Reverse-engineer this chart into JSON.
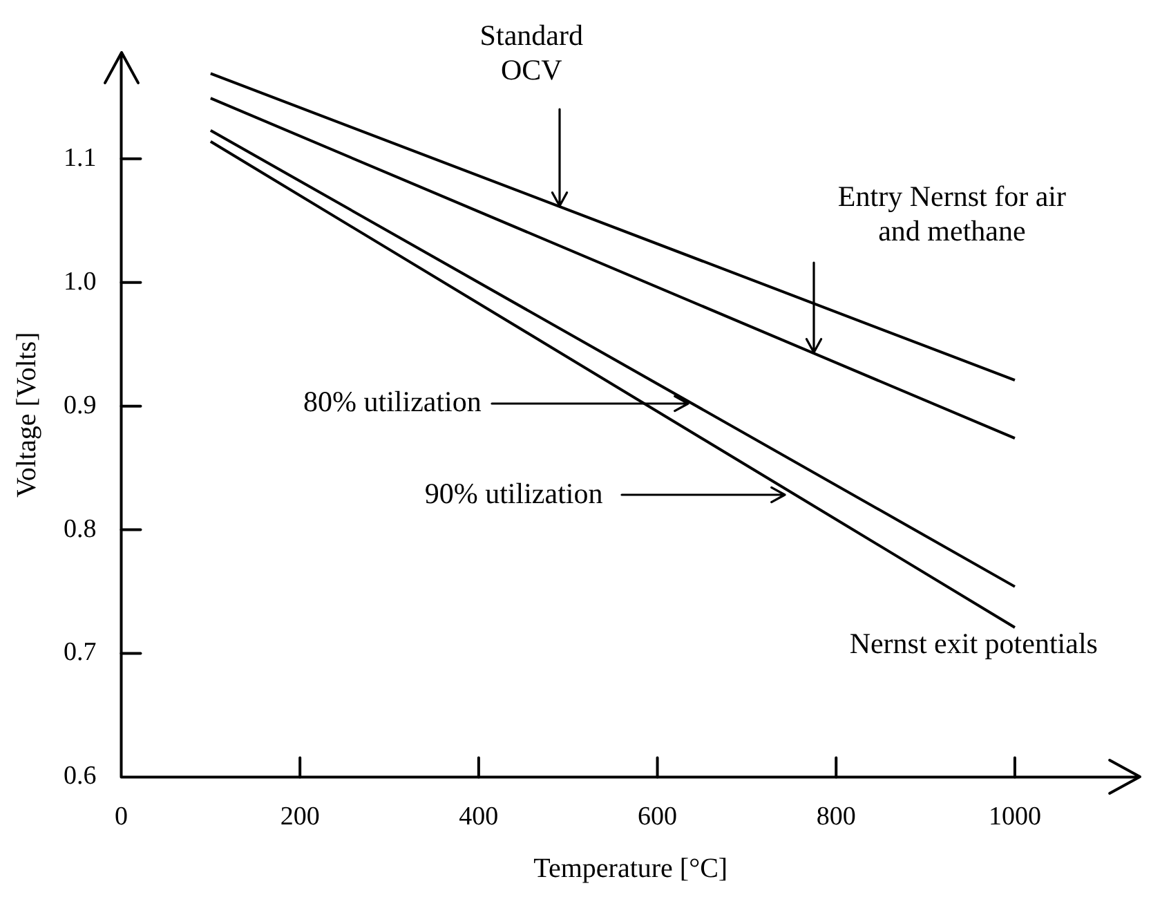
{
  "chart_data": {
    "type": "line",
    "xlabel": "Temperature [°C]",
    "ylabel": "Voltage [Volts]",
    "x": [
      100,
      1000
    ],
    "series": [
      {
        "color": "#000000",
        "values": [
          1.169,
          0.921
        ]
      },
      {
        "color": "#000000",
        "values": [
          1.149,
          0.874
        ]
      },
      {
        "color": "#000000",
        "values": [
          1.123,
          0.754
        ]
      },
      {
        "color": "#000000",
        "values": [
          1.114,
          0.721
        ]
      }
    ],
    "xlim": [
      0,
      1140
    ],
    "xticks": [
      0,
      200,
      400,
      600,
      800,
      1000
    ],
    "ylim": [
      0.6,
      1.186
    ],
    "yticks": [
      0.6,
      0.7,
      0.8,
      0.9,
      {
        "value": 1.0,
        "label": "1.0"
      },
      1.1
    ],
    "annotations": [
      {
        "text": "Standard\nOCV",
        "x": 490,
        "y": 1.062
      },
      {
        "text": "Entry Nernst for air\nand methane",
        "x": 775,
        "y": 0.943
      },
      {
        "text": "80% utilization",
        "x": 635,
        "y": 0.902
      },
      {
        "text": "90% utilization",
        "x": 743,
        "y": 0.828
      },
      "Nernst exit potentials"
    ]
  }
}
